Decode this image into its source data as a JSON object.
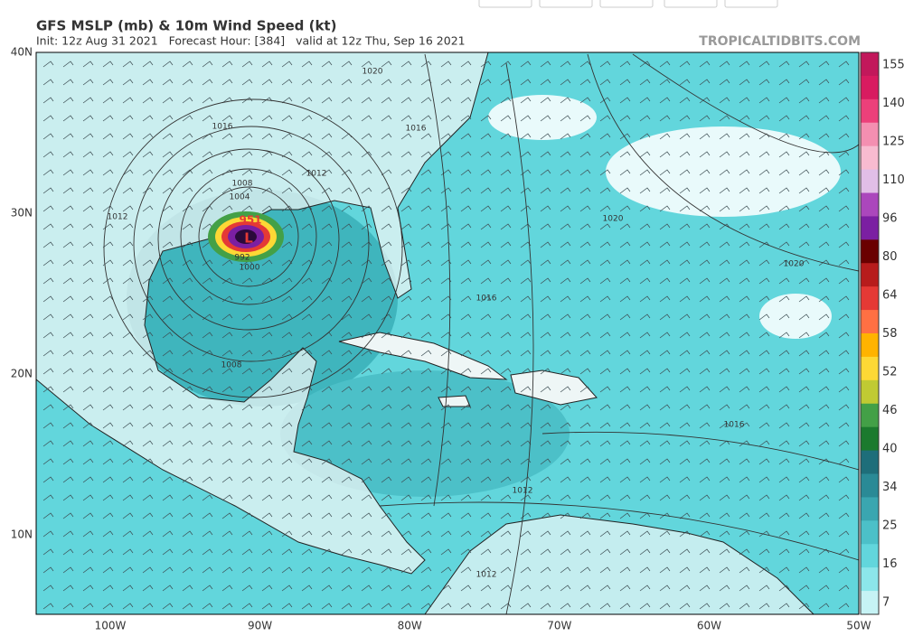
{
  "header": {
    "title": "GFS MSLP (mb) & 10m Wind Speed (kt)",
    "subtitle": "Init: 12z Aug 31 2021   Forecast Hour: [384]   valid at 12z Thu, Sep 16 2021",
    "site": "TROPICALTIDBITS.COM"
  },
  "map": {
    "lat_labels": [
      "40N",
      "30N",
      "20N",
      "10N"
    ],
    "lon_labels": [
      "100W",
      "90W",
      "80W",
      "70W",
      "60W",
      "50W"
    ],
    "isobar_labels": [
      "1020",
      "1016",
      "1016",
      "1012",
      "1012",
      "1008",
      "1004",
      "1000",
      "992",
      "1008",
      "1016",
      "1020",
      "1020",
      "1016",
      "1012",
      "1012"
    ],
    "low_pressure": "951",
    "low_symbol": "L"
  },
  "colorbar": {
    "labels": [
      "155",
      "140",
      "125",
      "110",
      "96",
      "80",
      "64",
      "58",
      "52",
      "46",
      "40",
      "34",
      "25",
      "16",
      "7"
    ],
    "colors": [
      "#c2185b",
      "#d81b60",
      "#ec407a",
      "#f48fb1",
      "#f8bbd0",
      "#e1bee7",
      "#ab47bc",
      "#7b1fa2",
      "#6a0000",
      "#b71c1c",
      "#e53935",
      "#ff7043",
      "#ffb300",
      "#fdd835",
      "#c0ca33",
      "#43a047",
      "#1b7a2e",
      "#1e6e7a",
      "#2a8a96",
      "#3aa6b0",
      "#4cc0c8",
      "#62d6dc",
      "#8ce6ea",
      "#c6f3f5"
    ]
  }
}
